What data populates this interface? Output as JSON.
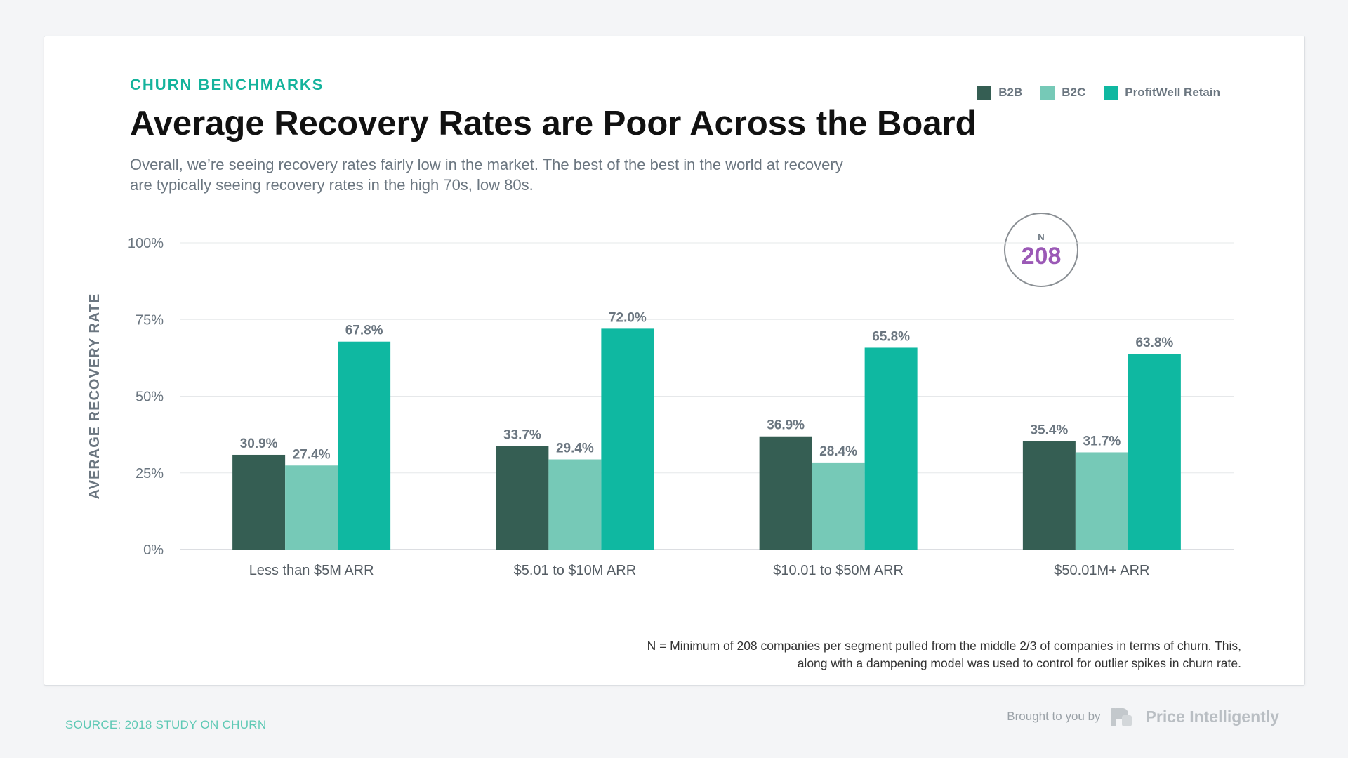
{
  "header": {
    "eyebrow": "CHURN BENCHMARKS",
    "title": "Average Recovery Rates are Poor Across the Board",
    "subtitle": "Overall, we’re seeing recovery rates fairly low in the market. The best of the best in the world at recovery are typically seeing recovery rates in the high 70s, low 80s."
  },
  "badge": {
    "label": "N",
    "value": "208"
  },
  "footnote": "N = Minimum of 208 companies per segment pulled from the middle 2/3 of companies in terms of churn. This, along with a dampening model was used to control for outlier spikes in churn rate.",
  "footer": {
    "source": "SOURCE: 2018 STUDY ON CHURN",
    "brand_prefix": "Brought to you by",
    "brand_name": "Price Intelligently"
  },
  "colors": {
    "b2b": "#355e53",
    "b2c": "#76c9b7",
    "retain": "#0fb8a1",
    "accent": "#14b39c",
    "badge_value": "#9b59b6"
  },
  "chart_data": {
    "type": "bar",
    "title": "Average Recovery Rates are Poor Across the Board",
    "ylabel": "AVERAGE RECOVERY RATE",
    "xlabel": "",
    "ylim": [
      0,
      100
    ],
    "yticks": [
      0,
      25,
      50,
      75,
      100
    ],
    "ytick_labels": [
      "0%",
      "25%",
      "50%",
      "75%",
      "100%"
    ],
    "grid": true,
    "legend": "top-right",
    "categories": [
      "Less than $5M ARR",
      "$5.01 to $10M ARR",
      "$10.01 to $50M ARR",
      "$50.01M+ ARR"
    ],
    "series": [
      {
        "name": "B2B",
        "color": "#355e53",
        "values": [
          30.9,
          33.7,
          36.9,
          35.4
        ],
        "labels": [
          "30.9%",
          "33.7%",
          "36.9%",
          "35.4%"
        ]
      },
      {
        "name": "B2C",
        "color": "#76c9b7",
        "values": [
          27.4,
          29.4,
          28.4,
          31.7
        ],
        "labels": [
          "27.4%",
          "29.4%",
          "28.4%",
          "31.7%"
        ]
      },
      {
        "name": "ProfitWell Retain",
        "color": "#0fb8a1",
        "values": [
          67.8,
          72.0,
          65.8,
          63.8
        ],
        "labels": [
          "67.8%",
          "72.0%",
          "65.8%",
          "63.8%"
        ]
      }
    ]
  }
}
